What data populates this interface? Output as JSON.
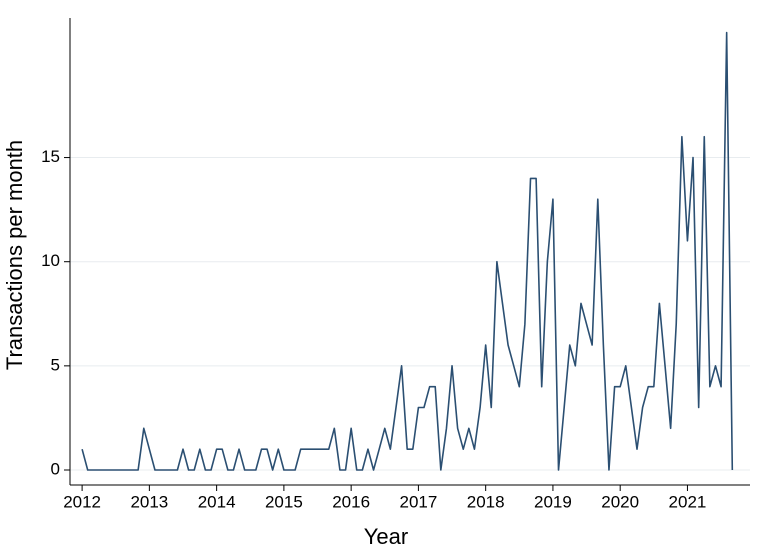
{
  "chart_data": {
    "type": "line",
    "x_label": "Year",
    "y_label": "Transactions per month",
    "x": [
      2012,
      2012.083,
      2012.167,
      2012.25,
      2012.333,
      2012.417,
      2012.5,
      2012.583,
      2012.667,
      2012.75,
      2012.833,
      2012.917,
      2013,
      2013.083,
      2013.167,
      2013.25,
      2013.333,
      2013.417,
      2013.5,
      2013.583,
      2013.667,
      2013.75,
      2013.833,
      2013.917,
      2014,
      2014.083,
      2014.167,
      2014.25,
      2014.333,
      2014.417,
      2014.5,
      2014.583,
      2014.667,
      2014.75,
      2014.833,
      2014.917,
      2015,
      2015.083,
      2015.167,
      2015.25,
      2015.333,
      2015.417,
      2015.5,
      2015.583,
      2015.667,
      2015.75,
      2015.833,
      2015.917,
      2016,
      2016.083,
      2016.167,
      2016.25,
      2016.333,
      2016.417,
      2016.5,
      2016.583,
      2016.667,
      2016.75,
      2016.833,
      2016.917,
      2017,
      2017.083,
      2017.167,
      2017.25,
      2017.333,
      2017.417,
      2017.5,
      2017.583,
      2017.667,
      2017.75,
      2017.833,
      2017.917,
      2018,
      2018.083,
      2018.167,
      2018.25,
      2018.333,
      2018.417,
      2018.5,
      2018.583,
      2018.667,
      2018.75,
      2018.833,
      2018.917,
      2019,
      2019.083,
      2019.167,
      2019.25,
      2019.333,
      2019.417,
      2019.5,
      2019.583,
      2019.667,
      2019.75,
      2019.833,
      2019.917,
      2020,
      2020.083,
      2020.167,
      2020.25,
      2020.333,
      2020.417,
      2020.5,
      2020.583,
      2020.667,
      2020.75,
      2020.833,
      2020.917,
      2021,
      2021.083,
      2021.167,
      2021.25,
      2021.333,
      2021.417,
      2021.5,
      2021.583,
      2021.667
    ],
    "series": [
      {
        "color": "#2b4f72",
        "values": [
          1,
          0,
          0,
          0,
          0,
          0,
          0,
          0,
          0,
          0,
          0,
          2,
          1,
          0,
          0,
          0,
          0,
          0,
          1,
          0,
          0,
          1,
          0,
          0,
          1,
          1,
          0,
          0,
          1,
          0,
          0,
          0,
          1,
          1,
          0,
          1,
          0,
          0,
          0,
          1,
          1,
          1,
          1,
          1,
          1,
          2,
          0,
          0,
          2,
          0,
          0,
          1,
          0,
          1,
          2,
          1,
          3,
          5,
          1,
          1,
          3,
          3,
          4,
          4,
          0,
          2,
          5,
          2,
          1,
          2,
          1,
          3,
          6,
          3,
          10,
          8,
          6,
          5,
          4,
          7,
          14,
          14,
          4,
          10,
          13,
          0,
          3,
          6,
          5,
          8,
          7,
          6,
          13,
          6,
          0,
          4,
          4,
          5,
          3,
          1,
          3,
          4,
          4,
          8,
          5,
          2,
          7,
          16,
          11,
          15,
          3,
          16,
          4,
          5,
          4,
          21,
          0
        ]
      }
    ],
    "xlim": [
      2011.82,
      2021.93
    ],
    "xticks": [
      2012,
      2013,
      2014,
      2015,
      2016,
      2017,
      2018,
      2019,
      2020,
      2021
    ],
    "ylim": [
      -0.72,
      21.7
    ],
    "yticks": [
      0,
      5,
      10,
      15
    ],
    "grid": true
  }
}
